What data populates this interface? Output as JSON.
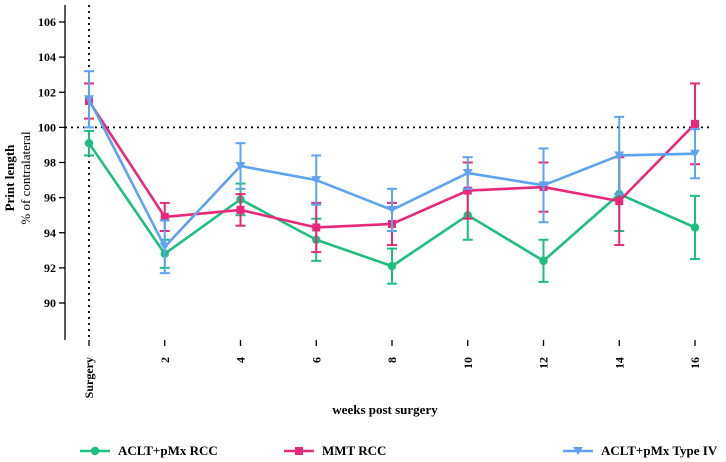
{
  "chart_data": {
    "type": "line",
    "title": "",
    "xlabel": "weeks post surgery",
    "ylabel_line1": "Print length",
    "ylabel_line2": "% of contralateral",
    "ylim": [
      88,
      107
    ],
    "y_ticks": [
      90,
      92,
      94,
      96,
      98,
      100,
      102,
      104,
      106
    ],
    "x_ticks": [
      0,
      2,
      4,
      6,
      8,
      10,
      12,
      14,
      16
    ],
    "x_tick_labels": [
      "Surgery",
      "2",
      "4",
      "6",
      "8",
      "10",
      "12",
      "14",
      "16"
    ],
    "reference_line_y": 100,
    "surgery_line_x": 0,
    "legend_position": "bottom",
    "series": [
      {
        "name": "ACLT+pMx RCC",
        "color": "#1dbf7e",
        "marker": "circle",
        "x": [
          0,
          2,
          4,
          6,
          8,
          10,
          12,
          14,
          16
        ],
        "y": [
          99.1,
          92.8,
          95.9,
          93.6,
          92.1,
          95.0,
          92.4,
          96.2,
          94.3
        ],
        "err": [
          0.7,
          0.8,
          0.9,
          1.2,
          1.0,
          1.4,
          1.2,
          2.1,
          1.8
        ]
      },
      {
        "name": "MMT RCC",
        "color": "#e8287a",
        "marker": "square",
        "x": [
          0,
          2,
          4,
          6,
          8,
          10,
          12,
          14,
          16
        ],
        "y": [
          101.5,
          94.9,
          95.3,
          94.3,
          94.5,
          96.4,
          96.6,
          95.8,
          100.2
        ],
        "err": [
          1.0,
          0.8,
          0.9,
          1.4,
          1.2,
          1.6,
          1.4,
          2.5,
          2.3
        ]
      },
      {
        "name": "ACLT+pMx Type IV",
        "color": "#5fa3f0",
        "marker": "triangle-down",
        "x": [
          0,
          2,
          4,
          6,
          8,
          10,
          12,
          14,
          16
        ],
        "y": [
          101.6,
          93.2,
          97.8,
          97.0,
          95.3,
          97.4,
          96.7,
          98.4,
          98.5
        ],
        "err": [
          1.6,
          1.5,
          1.3,
          1.4,
          1.2,
          0.9,
          2.1,
          2.2,
          1.4
        ]
      }
    ]
  }
}
